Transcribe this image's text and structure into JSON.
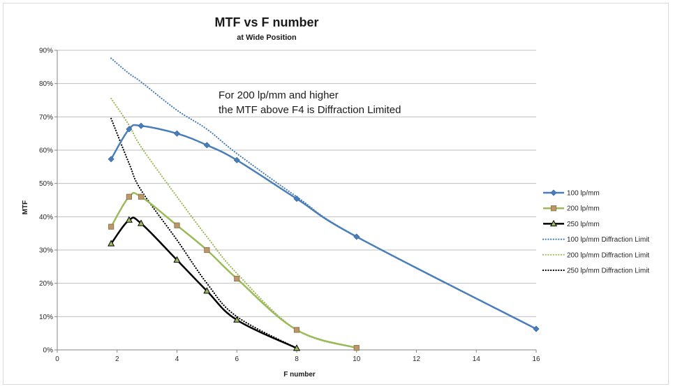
{
  "chart_data": {
    "type": "line",
    "title": "MTF vs F number",
    "subtitle": "at Wide Position",
    "xlabel": "F number",
    "ylabel": "MTF",
    "xlim": [
      0,
      16
    ],
    "ylim": [
      0,
      0.9
    ],
    "x_ticks": [
      "0",
      "2",
      "4",
      "6",
      "8",
      "10",
      "12",
      "14",
      "16"
    ],
    "y_ticks": [
      "0%",
      "10%",
      "20%",
      "30%",
      "40%",
      "50%",
      "60%",
      "70%",
      "80%",
      "90%"
    ],
    "grid": "horizontal",
    "legend_position": "right",
    "annotation": [
      "For 200 lp/mm and higher",
      "the MTF above F4 is Diffraction Limited"
    ],
    "series": [
      {
        "name": "100 lp/mm",
        "color": "#4a7ebb",
        "marker": "diamond",
        "dash": "solid",
        "x": [
          1.8,
          2.4,
          2.8,
          4,
          5,
          6,
          8,
          10,
          16
        ],
        "y": [
          0.573,
          0.663,
          0.673,
          0.65,
          0.615,
          0.57,
          0.454,
          0.34,
          0.063
        ]
      },
      {
        "name": "200 lp/mm",
        "color": "#9bbb59",
        "marker": "square",
        "dash": "solid",
        "x": [
          1.8,
          2.4,
          2.8,
          4,
          5,
          6,
          8,
          10
        ],
        "y": [
          0.37,
          0.46,
          0.46,
          0.374,
          0.3,
          0.214,
          0.06,
          0.006
        ]
      },
      {
        "name": "250 lp/mm",
        "color": "#000000",
        "marker": "triangle",
        "dash": "solid",
        "x": [
          1.8,
          2.4,
          2.8,
          4,
          5,
          6,
          8
        ],
        "y": [
          0.319,
          0.39,
          0.38,
          0.27,
          0.177,
          0.09,
          0.005
        ]
      },
      {
        "name": "100 lp/mm Diffraction Limit",
        "color": "#4a7ebb",
        "marker": "none",
        "dash": "dotted",
        "x": [
          1.8,
          2.4,
          2.8,
          4,
          5,
          6,
          8,
          10,
          16
        ],
        "y": [
          0.876,
          0.83,
          0.805,
          0.72,
          0.663,
          0.59,
          0.46,
          0.34,
          0.063
        ]
      },
      {
        "name": "200 lp/mm Diffraction Limit",
        "color": "#9bbb59",
        "marker": "none",
        "dash": "dotted",
        "x": [
          1.8,
          2.4,
          2.8,
          4,
          5,
          6,
          8,
          10
        ],
        "y": [
          0.755,
          0.675,
          0.61,
          0.46,
          0.34,
          0.23,
          0.06,
          0.006
        ]
      },
      {
        "name": "250 lp/mm Diffraction Limit",
        "color": "#000000",
        "marker": "none",
        "dash": "dotted",
        "x": [
          1.8,
          2.4,
          2.8,
          4,
          5,
          6,
          8
        ],
        "y": [
          0.695,
          0.56,
          0.48,
          0.33,
          0.2,
          0.1,
          0.005
        ]
      }
    ]
  }
}
